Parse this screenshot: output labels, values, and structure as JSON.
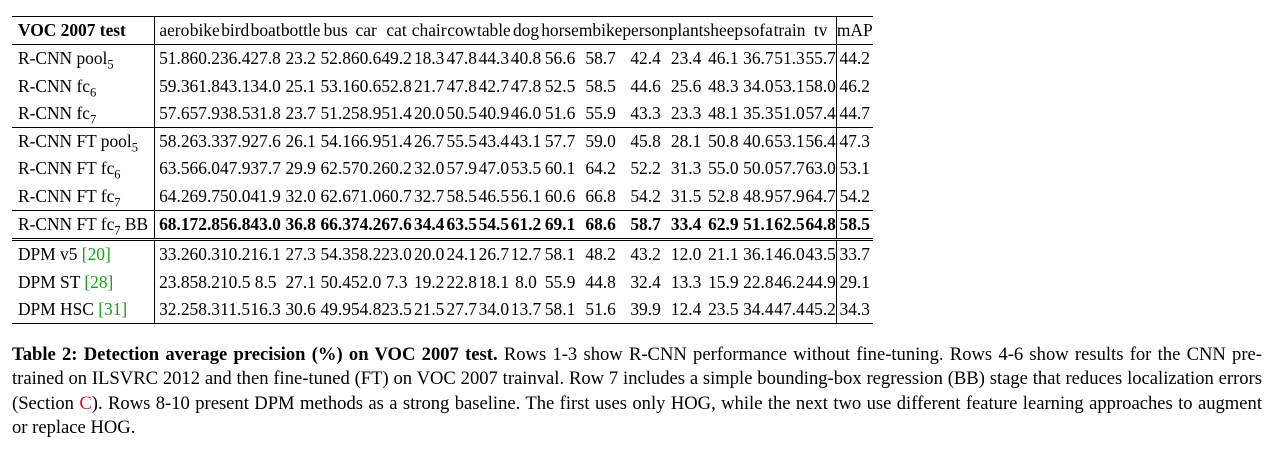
{
  "table": {
    "corner": "VOC 2007 test",
    "columns": [
      "aero",
      "bike",
      "bird",
      "boat",
      "bottle",
      "bus",
      "car",
      "cat",
      "chair",
      "cow",
      "table",
      "dog",
      "horse",
      "mbike",
      "person",
      "plant",
      "sheep",
      "sofa",
      "train",
      "tv"
    ],
    "map_header": "mAP",
    "rows": [
      {
        "base": "R-CNN pool",
        "sub": "5",
        "ref": "",
        "group": "a",
        "bold": false,
        "values": [
          "51.8",
          "60.2",
          "36.4",
          "27.8",
          "23.2",
          "52.8",
          "60.6",
          "49.2",
          "18.3",
          "47.8",
          "44.3",
          "40.8",
          "56.6",
          "58.7",
          "42.4",
          "23.4",
          "46.1",
          "36.7",
          "51.3",
          "55.7"
        ],
        "map": "44.2"
      },
      {
        "base": "R-CNN fc",
        "sub": "6",
        "ref": "",
        "group": "a",
        "bold": false,
        "values": [
          "59.3",
          "61.8",
          "43.1",
          "34.0",
          "25.1",
          "53.1",
          "60.6",
          "52.8",
          "21.7",
          "47.8",
          "42.7",
          "47.8",
          "52.5",
          "58.5",
          "44.6",
          "25.6",
          "48.3",
          "34.0",
          "53.1",
          "58.0"
        ],
        "map": "46.2"
      },
      {
        "base": "R-CNN fc",
        "sub": "7",
        "ref": "",
        "group": "a",
        "bold": false,
        "values": [
          "57.6",
          "57.9",
          "38.5",
          "31.8",
          "23.7",
          "51.2",
          "58.9",
          "51.4",
          "20.0",
          "50.5",
          "40.9",
          "46.0",
          "51.6",
          "55.9",
          "43.3",
          "23.3",
          "48.1",
          "35.3",
          "51.0",
          "57.4"
        ],
        "map": "44.7"
      },
      {
        "base": "R-CNN FT pool",
        "sub": "5",
        "ref": "",
        "group": "b",
        "bold": false,
        "values": [
          "58.2",
          "63.3",
          "37.9",
          "27.6",
          "26.1",
          "54.1",
          "66.9",
          "51.4",
          "26.7",
          "55.5",
          "43.4",
          "43.1",
          "57.7",
          "59.0",
          "45.8",
          "28.1",
          "50.8",
          "40.6",
          "53.1",
          "56.4"
        ],
        "map": "47.3"
      },
      {
        "base": "R-CNN FT fc",
        "sub": "6",
        "ref": "",
        "group": "b",
        "bold": false,
        "values": [
          "63.5",
          "66.0",
          "47.9",
          "37.7",
          "29.9",
          "62.5",
          "70.2",
          "60.2",
          "32.0",
          "57.9",
          "47.0",
          "53.5",
          "60.1",
          "64.2",
          "52.2",
          "31.3",
          "55.0",
          "50.0",
          "57.7",
          "63.0"
        ],
        "map": "53.1"
      },
      {
        "base": "R-CNN FT fc",
        "sub": "7",
        "ref": "",
        "group": "b",
        "bold": false,
        "values": [
          "64.2",
          "69.7",
          "50.0",
          "41.9",
          "32.0",
          "62.6",
          "71.0",
          "60.7",
          "32.7",
          "58.5",
          "46.5",
          "56.1",
          "60.6",
          "66.8",
          "54.2",
          "31.5",
          "52.8",
          "48.9",
          "57.9",
          "64.7"
        ],
        "map": "54.2"
      },
      {
        "base": "R-CNN FT fc",
        "sub": "7",
        "suffix": " BB",
        "ref": "",
        "group": "c",
        "bold": true,
        "values": [
          "68.1",
          "72.8",
          "56.8",
          "43.0",
          "36.8",
          "66.3",
          "74.2",
          "67.6",
          "34.4",
          "63.5",
          "54.5",
          "61.2",
          "69.1",
          "68.6",
          "58.7",
          "33.4",
          "62.9",
          "51.1",
          "62.5",
          "64.8"
        ],
        "map": "58.5"
      },
      {
        "base": "DPM v5 ",
        "sub": "",
        "ref": "[20]",
        "group": "d",
        "bold": false,
        "values": [
          "33.2",
          "60.3",
          "10.2",
          "16.1",
          "27.3",
          "54.3",
          "58.2",
          "23.0",
          "20.0",
          "24.1",
          "26.7",
          "12.7",
          "58.1",
          "48.2",
          "43.2",
          "12.0",
          "21.1",
          "36.1",
          "46.0",
          "43.5"
        ],
        "map": "33.7"
      },
      {
        "base": "DPM ST ",
        "sub": "",
        "ref": "[28]",
        "group": "d",
        "bold": false,
        "values": [
          "23.8",
          "58.2",
          "10.5",
          "8.5",
          "27.1",
          "50.4",
          "52.0",
          "7.3",
          "19.2",
          "22.8",
          "18.1",
          "8.0",
          "55.9",
          "44.8",
          "32.4",
          "13.3",
          "15.9",
          "22.8",
          "46.2",
          "44.9"
        ],
        "map": "29.1"
      },
      {
        "base": "DPM HSC ",
        "sub": "",
        "ref": "[31]",
        "group": "d",
        "bold": false,
        "values": [
          "32.2",
          "58.3",
          "11.5",
          "16.3",
          "30.6",
          "49.9",
          "54.8",
          "23.5",
          "21.5",
          "27.7",
          "34.0",
          "13.7",
          "58.1",
          "51.6",
          "39.9",
          "12.4",
          "23.5",
          "34.4",
          "47.4",
          "45.2"
        ],
        "map": "34.3"
      }
    ]
  },
  "caption": {
    "title": "Table 2: Detection average precision (%) on VOC 2007 test.",
    "text_before": " Rows 1-3 show R-CNN performance without fine-tuning. Rows 4-6 show results for the CNN pre-trained on ILSVRC 2012 and then fine-tuned (FT) on VOC 2007 trainval. Row 7 includes a simple bounding-box regression (BB) stage that reduces localization errors (Section ",
    "section_ref": "C",
    "text_after": "). Rows 8-10 present DPM methods as a strong baseline.  The first uses only HOG, while the next two use different feature learning approaches to augment or replace HOG."
  },
  "colors": {
    "citation": "#1b9e1b",
    "section_link": "#d11a1a"
  }
}
